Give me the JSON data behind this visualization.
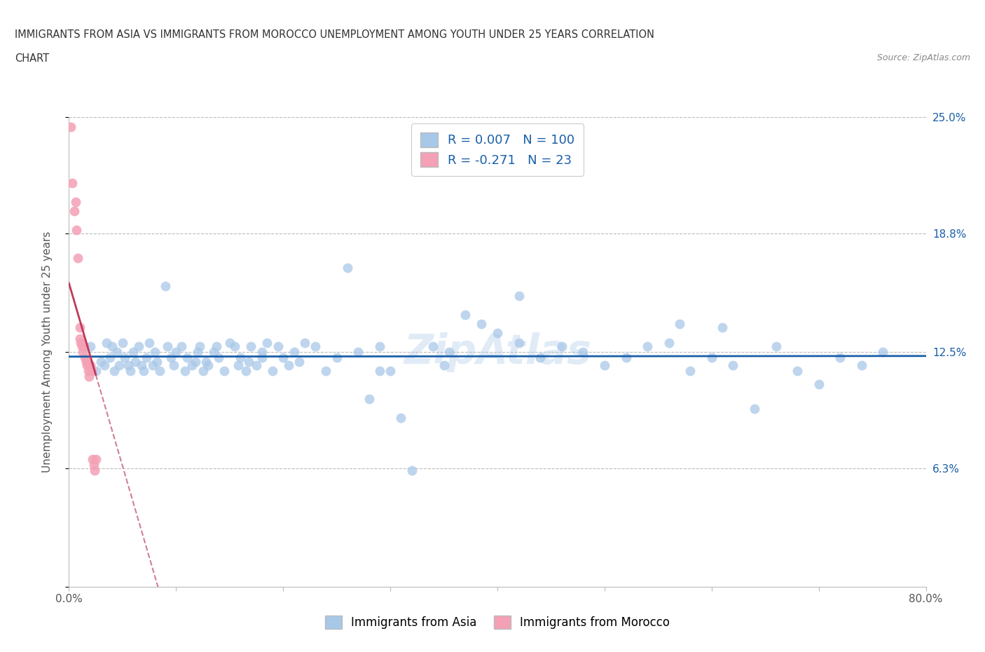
{
  "title_line1": "IMMIGRANTS FROM ASIA VS IMMIGRANTS FROM MOROCCO UNEMPLOYMENT AMONG YOUTH UNDER 25 YEARS CORRELATION",
  "title_line2": "CHART",
  "source": "Source: ZipAtlas.com",
  "ylabel": "Unemployment Among Youth under 25 years",
  "xlim": [
    0,
    0.8
  ],
  "ylim": [
    0,
    0.25
  ],
  "xticks": [
    0.0,
    0.1,
    0.2,
    0.3,
    0.4,
    0.5,
    0.6,
    0.7,
    0.8
  ],
  "xticklabels": [
    "0.0%",
    "",
    "",
    "",
    "",
    "",
    "",
    "",
    "80.0%"
  ],
  "yticks": [
    0.0,
    0.063,
    0.125,
    0.188,
    0.25
  ],
  "yticklabels_right": [
    "",
    "6.3%",
    "12.5%",
    "18.8%",
    "25.0%"
  ],
  "hlines": [
    0.063,
    0.125,
    0.188,
    0.25
  ],
  "blue_color": "#a8c8e8",
  "pink_color": "#f4a0b5",
  "blue_line_color": "#1a5fa8",
  "pink_line_color": "#c0395a",
  "pink_dash_color": "#d08090",
  "R_asia": 0.007,
  "N_asia": 100,
  "R_morocco": -0.271,
  "N_morocco": 23,
  "legend_label_asia": "Immigrants from Asia",
  "legend_label_morocco": "Immigrants from Morocco",
  "watermark": "ZipAtlas",
  "asia_x": [
    0.02,
    0.025,
    0.03,
    0.033,
    0.035,
    0.038,
    0.04,
    0.042,
    0.045,
    0.047,
    0.05,
    0.052,
    0.055,
    0.057,
    0.06,
    0.062,
    0.065,
    0.068,
    0.07,
    0.072,
    0.075,
    0.078,
    0.08,
    0.082,
    0.085,
    0.09,
    0.092,
    0.095,
    0.098,
    0.1,
    0.105,
    0.108,
    0.11,
    0.115,
    0.118,
    0.12,
    0.122,
    0.125,
    0.128,
    0.13,
    0.135,
    0.138,
    0.14,
    0.145,
    0.15,
    0.155,
    0.158,
    0.16,
    0.165,
    0.168,
    0.17,
    0.175,
    0.18,
    0.185,
    0.19,
    0.195,
    0.2,
    0.205,
    0.21,
    0.215,
    0.22,
    0.23,
    0.24,
    0.25,
    0.26,
    0.27,
    0.28,
    0.29,
    0.3,
    0.31,
    0.32,
    0.34,
    0.355,
    0.37,
    0.385,
    0.4,
    0.42,
    0.44,
    0.46,
    0.48,
    0.5,
    0.52,
    0.54,
    0.56,
    0.58,
    0.6,
    0.62,
    0.64,
    0.66,
    0.68,
    0.7,
    0.72,
    0.74,
    0.76,
    0.57,
    0.61,
    0.42,
    0.18,
    0.29,
    0.35
  ],
  "asia_y": [
    0.128,
    0.115,
    0.12,
    0.118,
    0.13,
    0.122,
    0.128,
    0.115,
    0.125,
    0.118,
    0.13,
    0.122,
    0.118,
    0.115,
    0.125,
    0.12,
    0.128,
    0.118,
    0.115,
    0.122,
    0.13,
    0.118,
    0.125,
    0.12,
    0.115,
    0.16,
    0.128,
    0.122,
    0.118,
    0.125,
    0.128,
    0.115,
    0.122,
    0.118,
    0.12,
    0.125,
    0.128,
    0.115,
    0.12,
    0.118,
    0.125,
    0.128,
    0.122,
    0.115,
    0.13,
    0.128,
    0.118,
    0.122,
    0.115,
    0.12,
    0.128,
    0.118,
    0.122,
    0.13,
    0.115,
    0.128,
    0.122,
    0.118,
    0.125,
    0.12,
    0.13,
    0.128,
    0.115,
    0.122,
    0.17,
    0.125,
    0.1,
    0.128,
    0.115,
    0.09,
    0.062,
    0.128,
    0.125,
    0.145,
    0.14,
    0.135,
    0.13,
    0.122,
    0.128,
    0.125,
    0.118,
    0.122,
    0.128,
    0.13,
    0.115,
    0.122,
    0.118,
    0.095,
    0.128,
    0.115,
    0.108,
    0.122,
    0.118,
    0.125,
    0.14,
    0.138,
    0.155,
    0.125,
    0.115,
    0.118
  ],
  "morocco_x": [
    0.002,
    0.003,
    0.005,
    0.006,
    0.007,
    0.008,
    0.01,
    0.01,
    0.011,
    0.012,
    0.013,
    0.014,
    0.015,
    0.016,
    0.017,
    0.018,
    0.019,
    0.02,
    0.021,
    0.022,
    0.023,
    0.024,
    0.025
  ],
  "morocco_y": [
    0.245,
    0.215,
    0.2,
    0.205,
    0.19,
    0.175,
    0.132,
    0.138,
    0.13,
    0.128,
    0.125,
    0.128,
    0.122,
    0.12,
    0.118,
    0.115,
    0.112,
    0.118,
    0.115,
    0.068,
    0.065,
    0.062,
    0.068
  ]
}
